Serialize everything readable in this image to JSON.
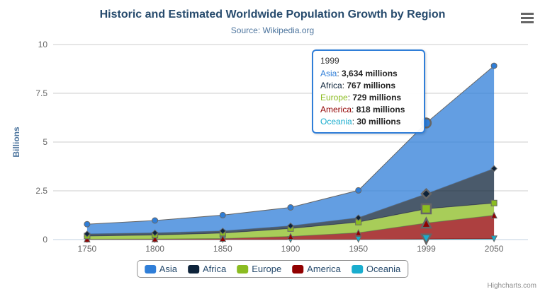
{
  "chart": {
    "title": "Historic and Estimated Worldwide Population Growth by Region",
    "subtitle": "Source: Wikipedia.org",
    "credits": "Highcharts.com"
  },
  "chart_data": {
    "type": "area",
    "stacking": "normal",
    "title": "Historic and Estimated Worldwide Population Growth by Region",
    "subtitle": "Source: Wikipedia.org",
    "categories": [
      "1750",
      "1800",
      "1850",
      "1900",
      "1950",
      "1999",
      "2050"
    ],
    "series": [
      {
        "name": "Asia",
        "color": "#2f7ed8",
        "marker": "circle",
        "values": [
          502,
          635,
          809,
          947,
          1402,
          3634,
          5268
        ]
      },
      {
        "name": "Africa",
        "color": "#0d233a",
        "marker": "diamond",
        "values": [
          106,
          107,
          111,
          133,
          221,
          767,
          1766
        ]
      },
      {
        "name": "Europe",
        "color": "#8bbc21",
        "marker": "square",
        "values": [
          163,
          203,
          276,
          408,
          547,
          729,
          628
        ]
      },
      {
        "name": "America",
        "color": "#910000",
        "marker": "triangle",
        "values": [
          18,
          31,
          54,
          156,
          339,
          818,
          1201
        ]
      },
      {
        "name": "Oceania",
        "color": "#1aadce",
        "marker": "triangle-down",
        "values": [
          2,
          2,
          2,
          6,
          13,
          30,
          46
        ]
      }
    ],
    "values_unit": "millions",
    "xlabel": "",
    "ylabel": "Billions",
    "ylim": [
      0,
      10
    ],
    "yticks": [
      0,
      2.5,
      5,
      7.5,
      10
    ],
    "grid": true,
    "legend_position": "bottom",
    "hover_category_index": 5
  },
  "tooltip": {
    "header": "1999",
    "border_color": "#2f7ed8",
    "rows": [
      {
        "name": "Asia",
        "value": "3,634 millions"
      },
      {
        "name": "Africa",
        "value": "767 millions"
      },
      {
        "name": "Europe",
        "value": "729 millions"
      },
      {
        "name": "America",
        "value": "818 millions"
      },
      {
        "name": "Oceania",
        "value": "30 millions"
      }
    ]
  },
  "icons": {
    "menu": "hamburger-icon"
  }
}
